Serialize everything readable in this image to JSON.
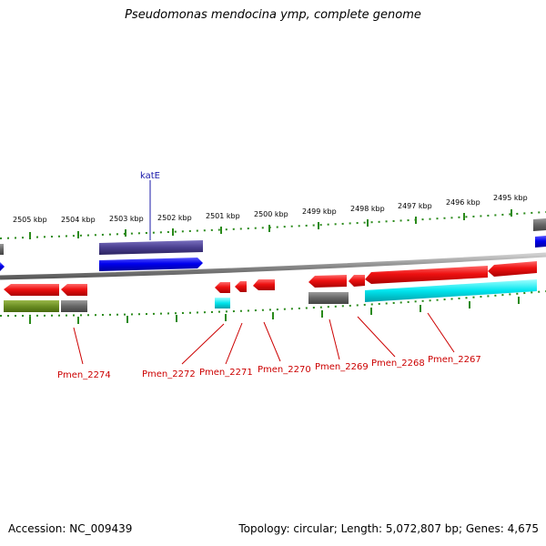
{
  "title": "Pseudomonas mendocina ymp, complete genome",
  "footer": {
    "accession": "Accession: NC_009439",
    "topology": "Topology: circular; Length: 5,072,807 bp; Genes: 4,675"
  },
  "colors": {
    "forward": "#ee1111",
    "reverse": "#0000ee",
    "cds_other": "#6b8e23",
    "rna": "#00e5ee",
    "pseudo": "#666666",
    "hypothetical": "#4a3f8f",
    "scale_tick": "#2a8a1a",
    "backbone": "#8a8a8a",
    "label_red": "#cc0000",
    "label_blue": "#1a1aaa"
  },
  "scale_labels": [
    "2505 kbp",
    "2504 kbp",
    "2503 kbp",
    "2502 kbp",
    "2501 kbp",
    "2500 kbp",
    "2499 kbp",
    "2498 kbp",
    "2497 kbp",
    "2496 kbp",
    "2495 kbp"
  ],
  "gene_labels": [
    {
      "name": "katE",
      "color": "blue"
    },
    {
      "name": "Pmen_2274",
      "color": "red"
    },
    {
      "name": "Pmen_2272",
      "color": "red"
    },
    {
      "name": "Pmen_2271",
      "color": "red"
    },
    {
      "name": "Pmen_2270",
      "color": "red"
    },
    {
      "name": "Pmen_2269",
      "color": "red"
    },
    {
      "name": "Pmen_2268",
      "color": "red"
    },
    {
      "name": "Pmen_2267",
      "color": "red"
    }
  ]
}
